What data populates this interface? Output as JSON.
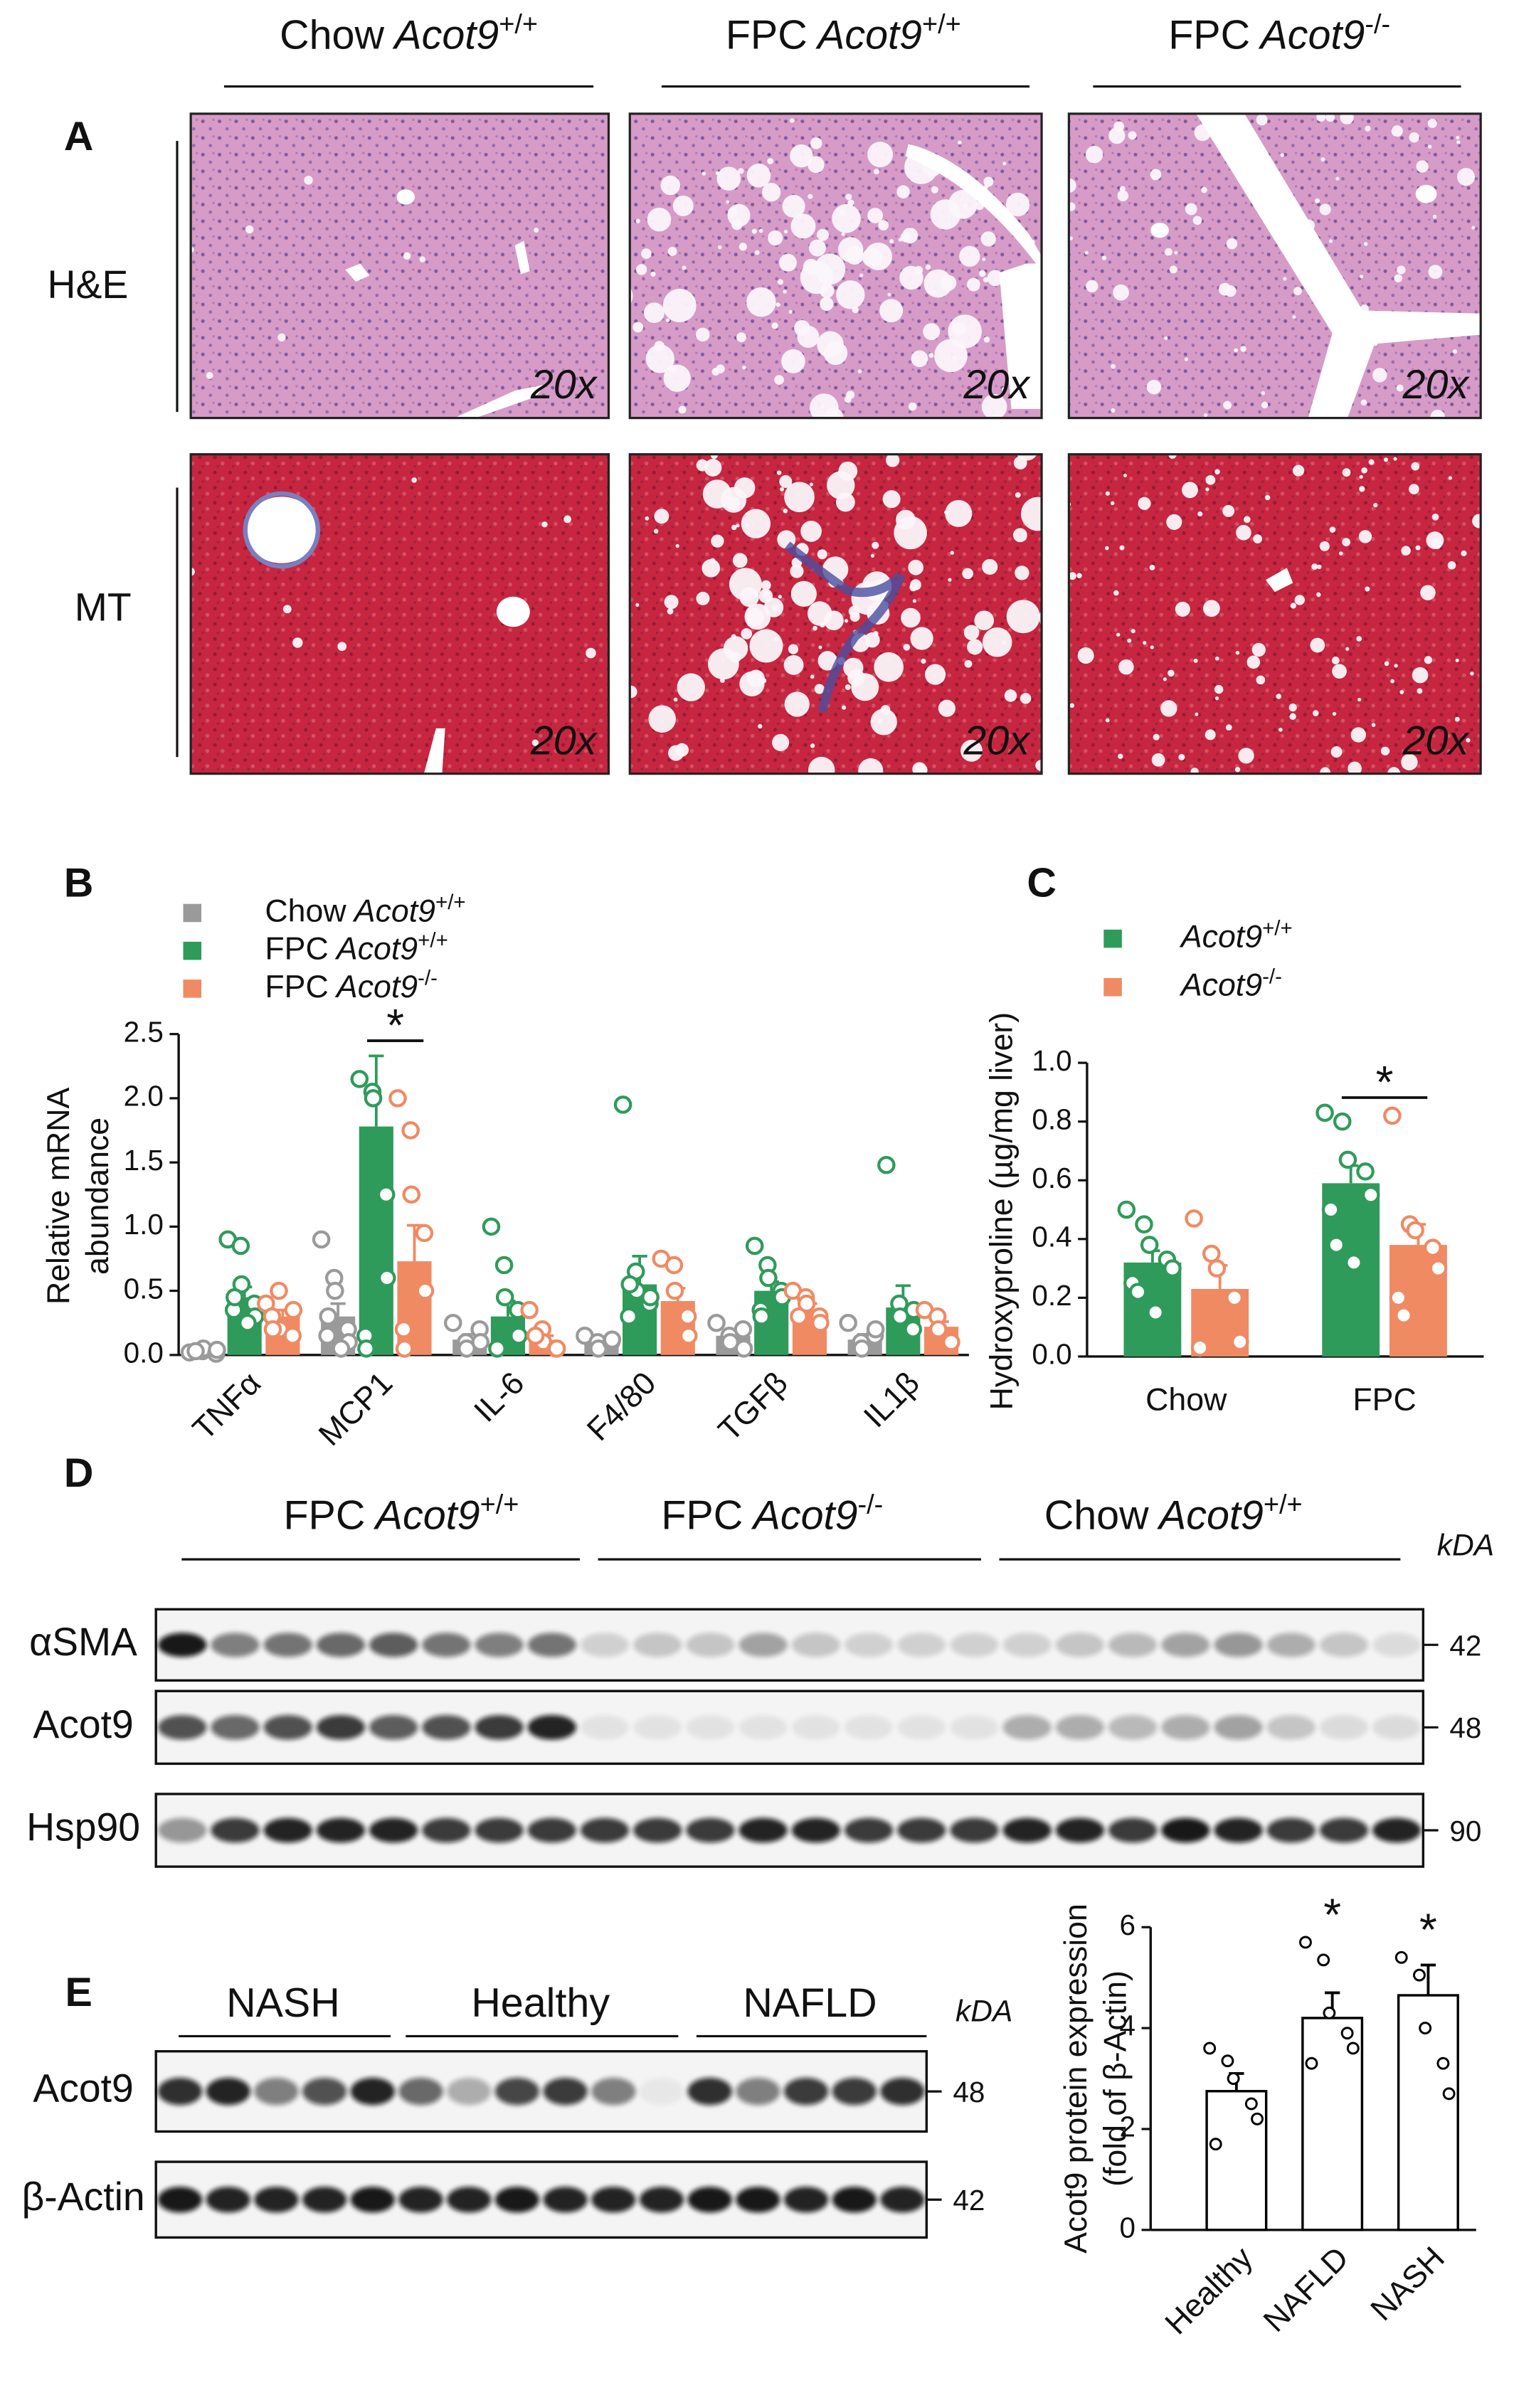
{
  "panel_labels": [
    "A",
    "B",
    "C",
    "D",
    "E"
  ],
  "histology": {
    "columns": [
      {
        "prefix": "Chow",
        "gene": "Acot9",
        "genotype": "+/+"
      },
      {
        "prefix": "FPC",
        "gene": "Acot9",
        "genotype": "+/+"
      },
      {
        "prefix": "FPC",
        "gene": "Acot9",
        "genotype": "-/-"
      }
    ],
    "rows": [
      "H&E",
      "MT"
    ],
    "magnification": "20x"
  },
  "blot_d": {
    "groups": [
      {
        "prefix": "FPC",
        "gene": "Acot9",
        "genotype": "+/+"
      },
      {
        "prefix": "FPC",
        "gene": "Acot9",
        "genotype": "-/-"
      },
      {
        "prefix": "Chow",
        "gene": "Acot9",
        "genotype": "+/+"
      }
    ],
    "unit": "kDA",
    "rows": [
      {
        "label": "αSMA",
        "kda": 42
      },
      {
        "label": "Acot9",
        "kda": 48
      },
      {
        "label": "Hsp90",
        "kda": 90
      }
    ]
  },
  "blot_e": {
    "groups": [
      "NASH",
      "Healthy",
      "NAFLD"
    ],
    "unit": "kDA",
    "rows": [
      {
        "label": "Acot9",
        "kda": 48
      },
      {
        "label": "β-Actin",
        "kda": 42
      }
    ]
  },
  "chart_data": [
    {
      "type": "bar",
      "ylabel": [
        "Relative mRNA",
        "abundance"
      ],
      "categories": [
        "TNFα",
        "MCP1",
        "IL-6",
        "F4/80",
        "TGFβ",
        "IL1β"
      ],
      "series": [
        {
          "name": {
            "prefix": "Chow",
            "gene": "Acot9",
            "genotype": "+/+"
          },
          "color": "#9a9a9a",
          "values": [
            0.03,
            0.3,
            0.12,
            0.1,
            0.15,
            0.12
          ],
          "errors": [
            0.01,
            0.1,
            0.04,
            0.02,
            0.04,
            0.04
          ],
          "points": [
            [
              0.02,
              0.03,
              0.05,
              0.01,
              0.04,
              0.03
            ],
            [
              0.9,
              0.6,
              0.5,
              0.2,
              0.1,
              0.15,
              0.3,
              0.05
            ],
            [
              0.25,
              0.1,
              0.05,
              0.2,
              0.1
            ],
            [
              0.15,
              0.1,
              0.05,
              0.1,
              0.12
            ],
            [
              0.25,
              0.15,
              0.1,
              0.2,
              0.05
            ],
            [
              0.25,
              0.1,
              0.05,
              0.15,
              0.2
            ]
          ]
        },
        {
          "name": {
            "prefix": "FPC",
            "gene": "Acot9",
            "genotype": "+/+"
          },
          "color": "#2f9b5a",
          "values": [
            0.45,
            1.78,
            0.3,
            0.55,
            0.5,
            0.37
          ],
          "errors": [
            0.08,
            0.55,
            0.12,
            0.22,
            0.07,
            0.17
          ],
          "points": [
            [
              0.9,
              0.85,
              0.55,
              0.4,
              0.3,
              0.35,
              0.45,
              0.25
            ],
            [
              2.15,
              2.05,
              2.0,
              1.25,
              0.6,
              0.15,
              0.05
            ],
            [
              1.0,
              0.7,
              0.45,
              0.35,
              0.15,
              0.05
            ],
            [
              1.95,
              0.65,
              0.5,
              0.4,
              0.45,
              0.3,
              0.55
            ],
            [
              0.85,
              0.7,
              0.6,
              0.5,
              0.45,
              0.35,
              0.3
            ],
            [
              1.48,
              0.4,
              0.3,
              0.2,
              0.35
            ]
          ]
        },
        {
          "name": {
            "prefix": "FPC",
            "gene": "Acot9",
            "genotype": "-/-"
          },
          "color": "#f08a63",
          "values": [
            0.3,
            0.73,
            0.1,
            0.42,
            0.35,
            0.22
          ],
          "errors": [
            0.05,
            0.28,
            0.05,
            0.1,
            0.05,
            0.04
          ],
          "points": [
            [
              0.4,
              0.5,
              0.2,
              0.15,
              0.35,
              0.3,
              0.2
            ],
            [
              2.0,
              1.75,
              1.25,
              0.95,
              0.5,
              0.2,
              0.05
            ],
            [
              0.35,
              0.2,
              0.1,
              0.05,
              0.05,
              0.15
            ],
            [
              0.75,
              0.7,
              0.5,
              0.3,
              0.15
            ],
            [
              0.5,
              0.45,
              0.4,
              0.3,
              0.25,
              0.3
            ],
            [
              0.35,
              0.3,
              0.2,
              0.1
            ]
          ]
        }
      ],
      "ylim": [
        0,
        2.5
      ],
      "yticks": [
        {
          "value": 0,
          "label": "0.0"
        },
        {
          "value": 0.5,
          "label": "0.5"
        },
        {
          "value": 1,
          "label": "1.0"
        },
        {
          "value": 1.5,
          "label": "1.5"
        },
        {
          "value": 2,
          "label": "2.0"
        },
        {
          "value": 2.5,
          "label": "2.5"
        }
      ],
      "legend": "upper left",
      "annotations": [
        {
          "text": "*",
          "categories": [
            "MCP1"
          ],
          "bracket": true
        }
      ]
    },
    {
      "type": "bar",
      "ylabel": [
        "Hydroxyproline (µg/mg liver)"
      ],
      "categories": [
        "Chow",
        "FPC"
      ],
      "series": [
        {
          "name": {
            "gene": "Acot9",
            "genotype": "+/+"
          },
          "color": "#2f9b5a",
          "values": [
            0.32,
            0.59
          ],
          "errors": [
            0.04,
            0.06
          ],
          "points": [
            [
              0.5,
              0.45,
              0.38,
              0.33,
              0.3,
              0.25,
              0.22,
              0.15
            ],
            [
              0.83,
              0.8,
              0.67,
              0.63,
              0.55,
              0.5,
              0.38,
              0.32
            ]
          ]
        },
        {
          "name": {
            "gene": "Acot9",
            "genotype": "-/-"
          },
          "color": "#f08a63",
          "values": [
            0.23,
            0.38
          ],
          "errors": [
            0.08,
            0.07
          ],
          "points": [
            [
              0.47,
              0.35,
              0.3,
              0.2,
              0.05,
              0.03
            ],
            [
              0.82,
              0.45,
              0.43,
              0.37,
              0.3,
              0.2,
              0.14
            ]
          ]
        }
      ],
      "ylim": [
        0,
        1
      ],
      "yticks": [
        {
          "value": 0,
          "label": "0.0"
        },
        0.2,
        0.4,
        0.6,
        0.8,
        {
          "value": 1,
          "label": "1.0"
        }
      ],
      "legend": "upper left",
      "annotations": [
        {
          "text": "*",
          "categories": [
            "FPC"
          ],
          "bracket": true
        }
      ]
    },
    {
      "type": "bar",
      "ylabel": [
        "Acot9 protein expression",
        "(fold of β-Actin)"
      ],
      "categories": [
        "Healthy",
        "NAFLD",
        "NASH"
      ],
      "series": [
        {
          "color": "#ffffff",
          "edgecolor": "#000000",
          "values": [
            2.75,
            4.2,
            4.65
          ],
          "errors": [
            0.35,
            0.5,
            0.6
          ],
          "points": [
            [
              3.6,
              3.35,
              3.0,
              2.5,
              2.2,
              1.7
            ],
            [
              5.7,
              5.35,
              4.3,
              3.9,
              3.6,
              3.3
            ],
            [
              5.4,
              5.05,
              4.0,
              3.3,
              2.7
            ]
          ]
        }
      ],
      "ylim": [
        0,
        6
      ],
      "yticks": [
        0,
        2,
        4,
        6
      ],
      "annotations": [
        {
          "text": "*",
          "categories": [
            "NAFLD"
          ]
        },
        {
          "text": "*",
          "categories": [
            "NASH"
          ]
        }
      ]
    }
  ]
}
